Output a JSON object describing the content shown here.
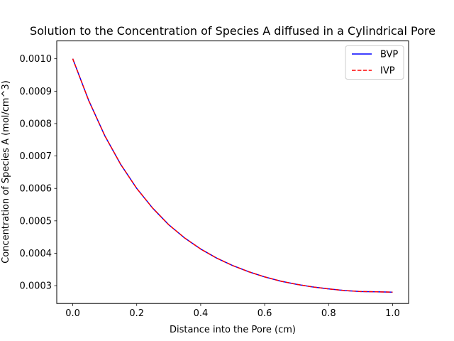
{
  "chart_data": {
    "type": "line",
    "title": "Solution to the Concentration of Species A diffused in a Cylindrical Pore",
    "xlabel": "Distance into the Pore (cm)",
    "ylabel": "Concentration of Species A (mol/cm^3)",
    "xlim": [
      -0.05,
      1.05
    ],
    "ylim": [
      0.000245,
      0.001055
    ],
    "xticks": [
      "0.0",
      "0.2",
      "0.4",
      "0.6",
      "0.8",
      "1.0"
    ],
    "xtick_values": [
      0.0,
      0.2,
      0.4,
      0.6,
      0.8,
      1.0
    ],
    "yticks": [
      "0.0003",
      "0.0004",
      "0.0005",
      "0.0006",
      "0.0007",
      "0.0008",
      "0.0009",
      "0.0010"
    ],
    "ytick_values": [
      0.0003,
      0.0004,
      0.0005,
      0.0006,
      0.0007,
      0.0008,
      0.0009,
      0.001
    ],
    "grid": false,
    "legend_position": "top-right",
    "x": [
      0.0,
      0.05,
      0.1,
      0.15,
      0.2,
      0.25,
      0.3,
      0.35,
      0.4,
      0.45,
      0.5,
      0.55,
      0.6,
      0.65,
      0.7,
      0.75,
      0.8,
      0.85,
      0.9,
      0.95,
      1.0
    ],
    "series": [
      {
        "name": "BVP",
        "color": "#0000ff",
        "style": "solid",
        "values": [
          0.001,
          0.000871,
          0.000763,
          0.000674,
          0.0006,
          0.000539,
          0.000488,
          0.000447,
          0.000413,
          0.000385,
          0.000362,
          0.000343,
          0.000327,
          0.000314,
          0.000304,
          0.000296,
          0.00029,
          0.000285,
          0.000282,
          0.000281,
          0.00028
        ]
      },
      {
        "name": "IVP",
        "color": "#ff0000",
        "style": "dashed",
        "values": [
          0.001,
          0.000871,
          0.000763,
          0.000674,
          0.0006,
          0.000539,
          0.000488,
          0.000447,
          0.000413,
          0.000385,
          0.000362,
          0.000343,
          0.000327,
          0.000314,
          0.000304,
          0.000296,
          0.00029,
          0.000285,
          0.000282,
          0.000281,
          0.00028
        ]
      }
    ]
  }
}
